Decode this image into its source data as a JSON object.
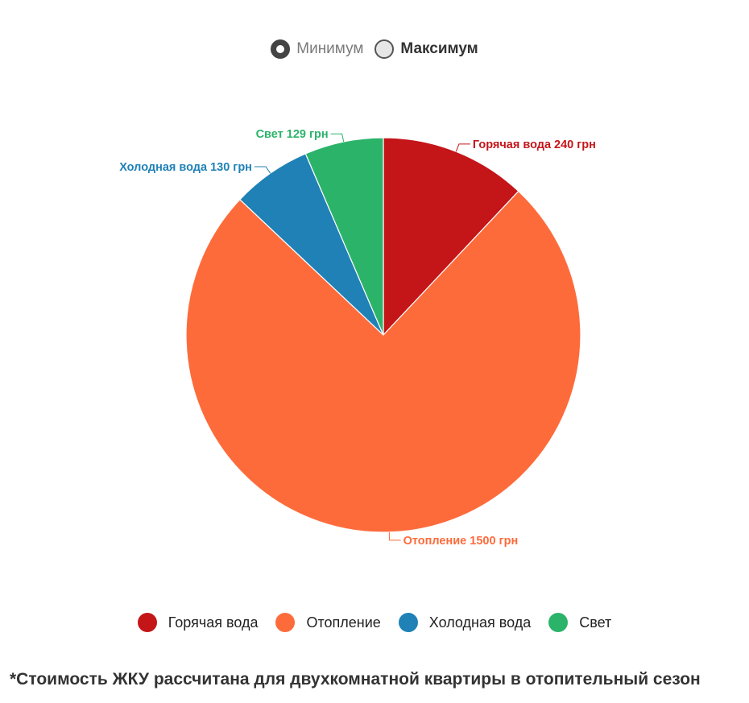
{
  "toggle": {
    "options": [
      {
        "label": "Минимум",
        "selected": true
      },
      {
        "label": "Максимум",
        "selected": false
      }
    ]
  },
  "chart_data": {
    "type": "pie",
    "categories": [
      "Горячая вода",
      "Отопление",
      "Холодная вода",
      "Свет"
    ],
    "values": [
      240,
      1500,
      130,
      129
    ],
    "unit": "грн",
    "colors": [
      "#c41519",
      "#fe6b3b",
      "#1f81b6",
      "#2cb36a"
    ],
    "labels": [
      "Горячая вода 240 грн",
      "Отопление 1500 грн",
      "Холодная вода 130 грн",
      "Свет 129 грн"
    ],
    "legend": {
      "position": "bottom",
      "entries": [
        "Горячая вода",
        "Отопление",
        "Холодная вода",
        "Свет"
      ]
    }
  },
  "footnote": "*Стоимость ЖКУ рассчитана для двухкомнатной квартиры в отопительный сезон"
}
